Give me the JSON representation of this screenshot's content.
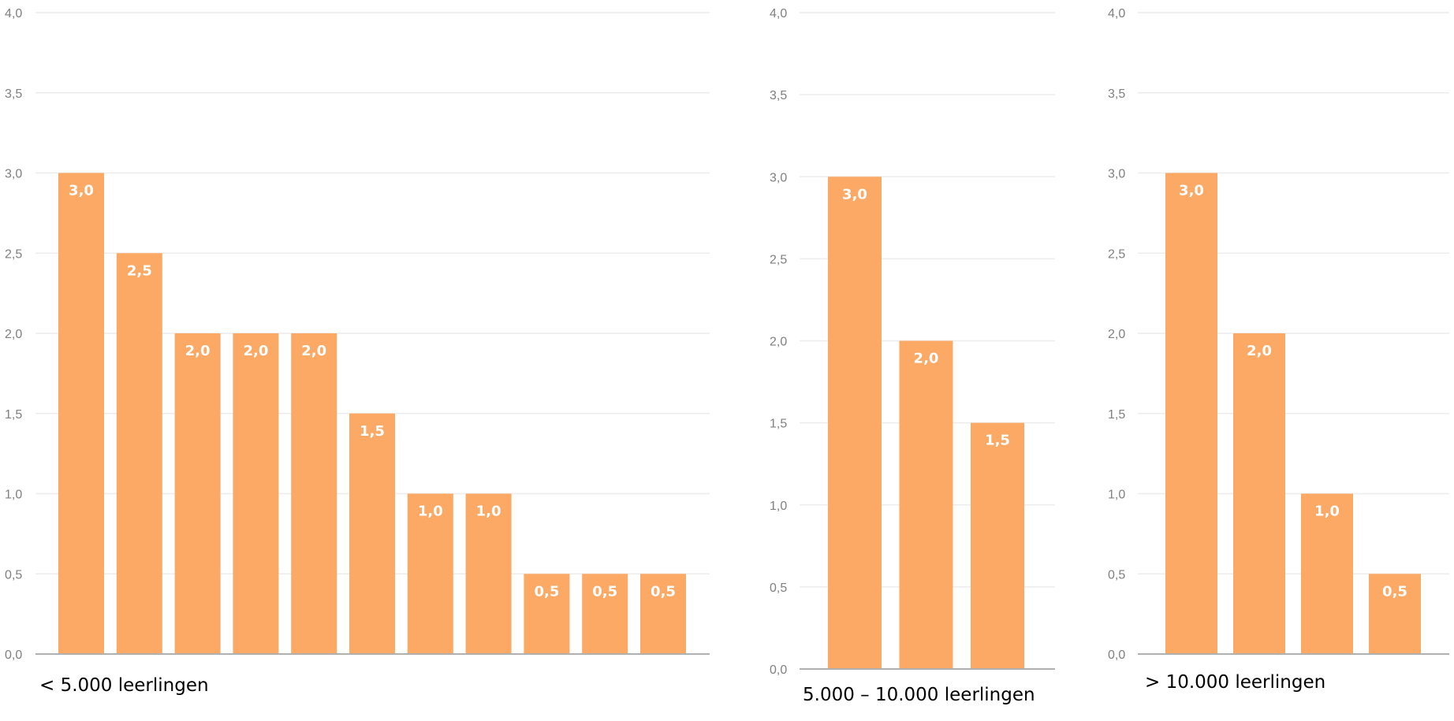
{
  "colors": {
    "bar": "#fca965",
    "grid": "#ececec",
    "axis": "#b0b0b0",
    "tick_text": "#808080",
    "label_text": "#ffffff"
  },
  "chart_data": [
    {
      "type": "bar",
      "caption": "< 5.000 leerlingen",
      "ylim": [
        0,
        4
      ],
      "yticks": [
        "0,0",
        "0,5",
        "1,0",
        "1,5",
        "2,0",
        "2,5",
        "3,0",
        "3,5",
        "4,0"
      ],
      "values": [
        3.0,
        2.5,
        2.0,
        2.0,
        2.0,
        1.5,
        1.0,
        1.0,
        0.5,
        0.5,
        0.5
      ],
      "data_labels": [
        "3,0",
        "2,5",
        "2,0",
        "2,0",
        "2,0",
        "1,5",
        "1,0",
        "1,0",
        "0,5",
        "0,5",
        "0,5"
      ],
      "grid": true
    },
    {
      "type": "bar",
      "caption": "5.000 – 10.000 leerlingen",
      "ylim": [
        0,
        4
      ],
      "yticks": [
        "0,0",
        "0,5",
        "1,0",
        "1,5",
        "2,0",
        "2,5",
        "3,0",
        "3,5",
        "4,0"
      ],
      "values": [
        3.0,
        2.0,
        1.5
      ],
      "data_labels": [
        "3,0",
        "2,0",
        "1,5"
      ],
      "grid": true
    },
    {
      "type": "bar",
      "caption": "> 10.000 leerlingen",
      "ylim": [
        0,
        4
      ],
      "yticks": [
        "0,0",
        "0,5",
        "1,0",
        "1,5",
        "2,0",
        "2,5",
        "3,0",
        "3,5",
        "4,0"
      ],
      "values": [
        3.0,
        2.0,
        1.0,
        0.5
      ],
      "data_labels": [
        "3,0",
        "2,0",
        "1,0",
        "0,5"
      ],
      "grid": true
    }
  ]
}
